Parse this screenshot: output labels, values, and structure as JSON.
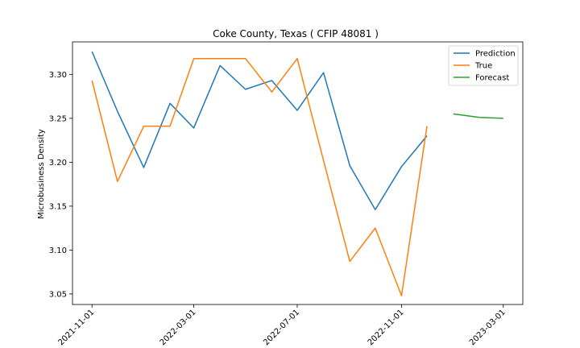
{
  "chart_data": {
    "type": "line",
    "title": "Coke County, Texas ( CFIP 48081 )",
    "xlabel": "",
    "ylabel": "Microbusiness Density",
    "x_ticks": [
      "2021-11-01",
      "2022-03-01",
      "2022-07-01",
      "2022-11-01",
      "2023-03-01"
    ],
    "y_ticks": [
      "3.05",
      "3.10",
      "3.15",
      "3.20",
      "3.25",
      "3.30"
    ],
    "ylim": [
      3.038,
      3.337
    ],
    "xlim": [
      "2021-10-09",
      "2023-03-24"
    ],
    "grid": false,
    "legend_position": "top-right",
    "series": [
      {
        "name": "Prediction",
        "color": "#1f77b4",
        "x": [
          "2021-11-01",
          "2021-12-01",
          "2022-01-01",
          "2022-02-01",
          "2022-03-01",
          "2022-04-01",
          "2022-05-01",
          "2022-06-01",
          "2022-07-01",
          "2022-08-01",
          "2022-09-01",
          "2022-10-01",
          "2022-11-01",
          "2022-12-01"
        ],
        "values": [
          3.326,
          3.258,
          3.194,
          3.267,
          3.239,
          3.31,
          3.283,
          3.293,
          3.259,
          3.302,
          3.196,
          3.146,
          3.195,
          3.23
        ]
      },
      {
        "name": "True",
        "color": "#ff7f0e",
        "x": [
          "2021-11-01",
          "2021-12-01",
          "2022-01-01",
          "2022-02-01",
          "2022-03-01",
          "2022-04-01",
          "2022-05-01",
          "2022-06-01",
          "2022-07-01",
          "2022-08-01",
          "2022-09-01",
          "2022-10-01",
          "2022-11-01",
          "2022-12-01"
        ],
        "values": [
          3.293,
          3.178,
          3.241,
          3.241,
          3.318,
          3.318,
          3.318,
          3.28,
          3.318,
          3.202,
          3.087,
          3.125,
          3.048,
          3.241
        ]
      },
      {
        "name": "Forecast",
        "color": "#2ca02c",
        "x": [
          "2023-01-01",
          "2023-02-01",
          "2023-03-01"
        ],
        "values": [
          3.255,
          3.251,
          3.25
        ]
      }
    ]
  }
}
